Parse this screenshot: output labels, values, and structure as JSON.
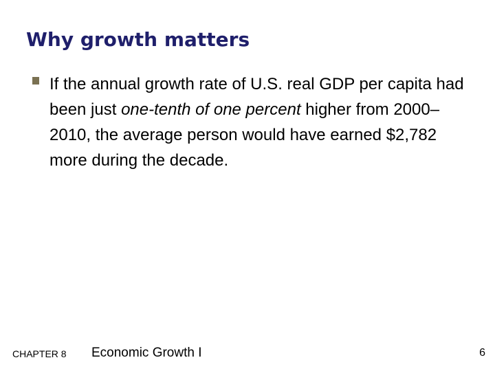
{
  "slide": {
    "title": "Why growth matters",
    "bullet": {
      "icon": "square-bullet-icon",
      "color": "#7a7152",
      "text_before": "If the annual growth rate of U.S. real GDP per capita had been just ",
      "text_emphasis": "one-tenth of one percent",
      "text_after": " higher from 2000–2010, the average person would have earned $2,782 more during the decade."
    }
  },
  "footer": {
    "chapter": "CHAPTER 8",
    "topic": "Economic Growth I",
    "page_number": "6"
  },
  "colors": {
    "title": "#1f1f6b",
    "text": "#000000",
    "background": "#ffffff"
  }
}
